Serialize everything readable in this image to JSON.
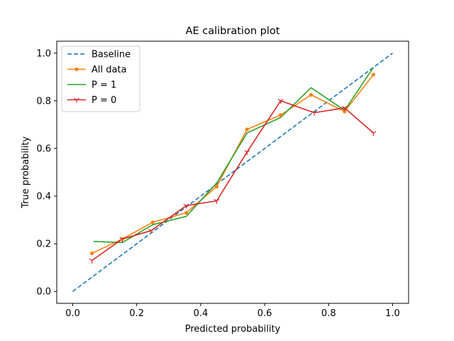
{
  "chart_data": {
    "type": "line",
    "title": "AE calibration plot",
    "xlabel": "Predicted probability",
    "ylabel": "True probability",
    "xlim": [
      -0.05,
      1.05
    ],
    "ylim": [
      -0.05,
      1.05
    ],
    "xticks": [
      0.0,
      0.2,
      0.4,
      0.6,
      0.8,
      1.0
    ],
    "xtick_labels": [
      "0.0",
      "0.2",
      "0.4",
      "0.6",
      "0.8",
      "1.0"
    ],
    "yticks": [
      0.0,
      0.2,
      0.4,
      0.6,
      0.8,
      1.0
    ],
    "ytick_labels": [
      "0.0",
      "0.2",
      "0.4",
      "0.6",
      "0.8",
      "1.0"
    ],
    "grid": false,
    "legend_position": "top-left",
    "series": [
      {
        "name": "Baseline",
        "color": "#1f77b4",
        "style": "dashed",
        "marker": "none",
        "x": [
          0.0,
          1.0
        ],
        "y": [
          0.0,
          1.0
        ]
      },
      {
        "name": "All data",
        "color": "#ff7f0e",
        "style": "solid",
        "marker": "dot",
        "x": [
          0.06,
          0.155,
          0.25,
          0.355,
          0.45,
          0.545,
          0.65,
          0.745,
          0.85,
          0.94
        ],
        "y": [
          0.16,
          0.22,
          0.29,
          0.33,
          0.44,
          0.68,
          0.74,
          0.825,
          0.755,
          0.91
        ]
      },
      {
        "name": "P = 1",
        "color": "#2ca02c",
        "style": "solid",
        "marker": "none",
        "x": [
          0.065,
          0.155,
          0.25,
          0.355,
          0.45,
          0.545,
          0.65,
          0.745,
          0.85,
          0.94
        ],
        "y": [
          0.21,
          0.205,
          0.28,
          0.315,
          0.455,
          0.665,
          0.73,
          0.855,
          0.76,
          0.94
        ]
      },
      {
        "name": "P = 0",
        "color": "#d62728",
        "style": "solid",
        "marker": "tri",
        "x": [
          0.06,
          0.155,
          0.245,
          0.355,
          0.45,
          0.545,
          0.65,
          0.755,
          0.85,
          0.94
        ],
        "y": [
          0.13,
          0.22,
          0.255,
          0.36,
          0.38,
          0.585,
          0.8,
          0.75,
          0.77,
          0.665
        ]
      }
    ]
  }
}
